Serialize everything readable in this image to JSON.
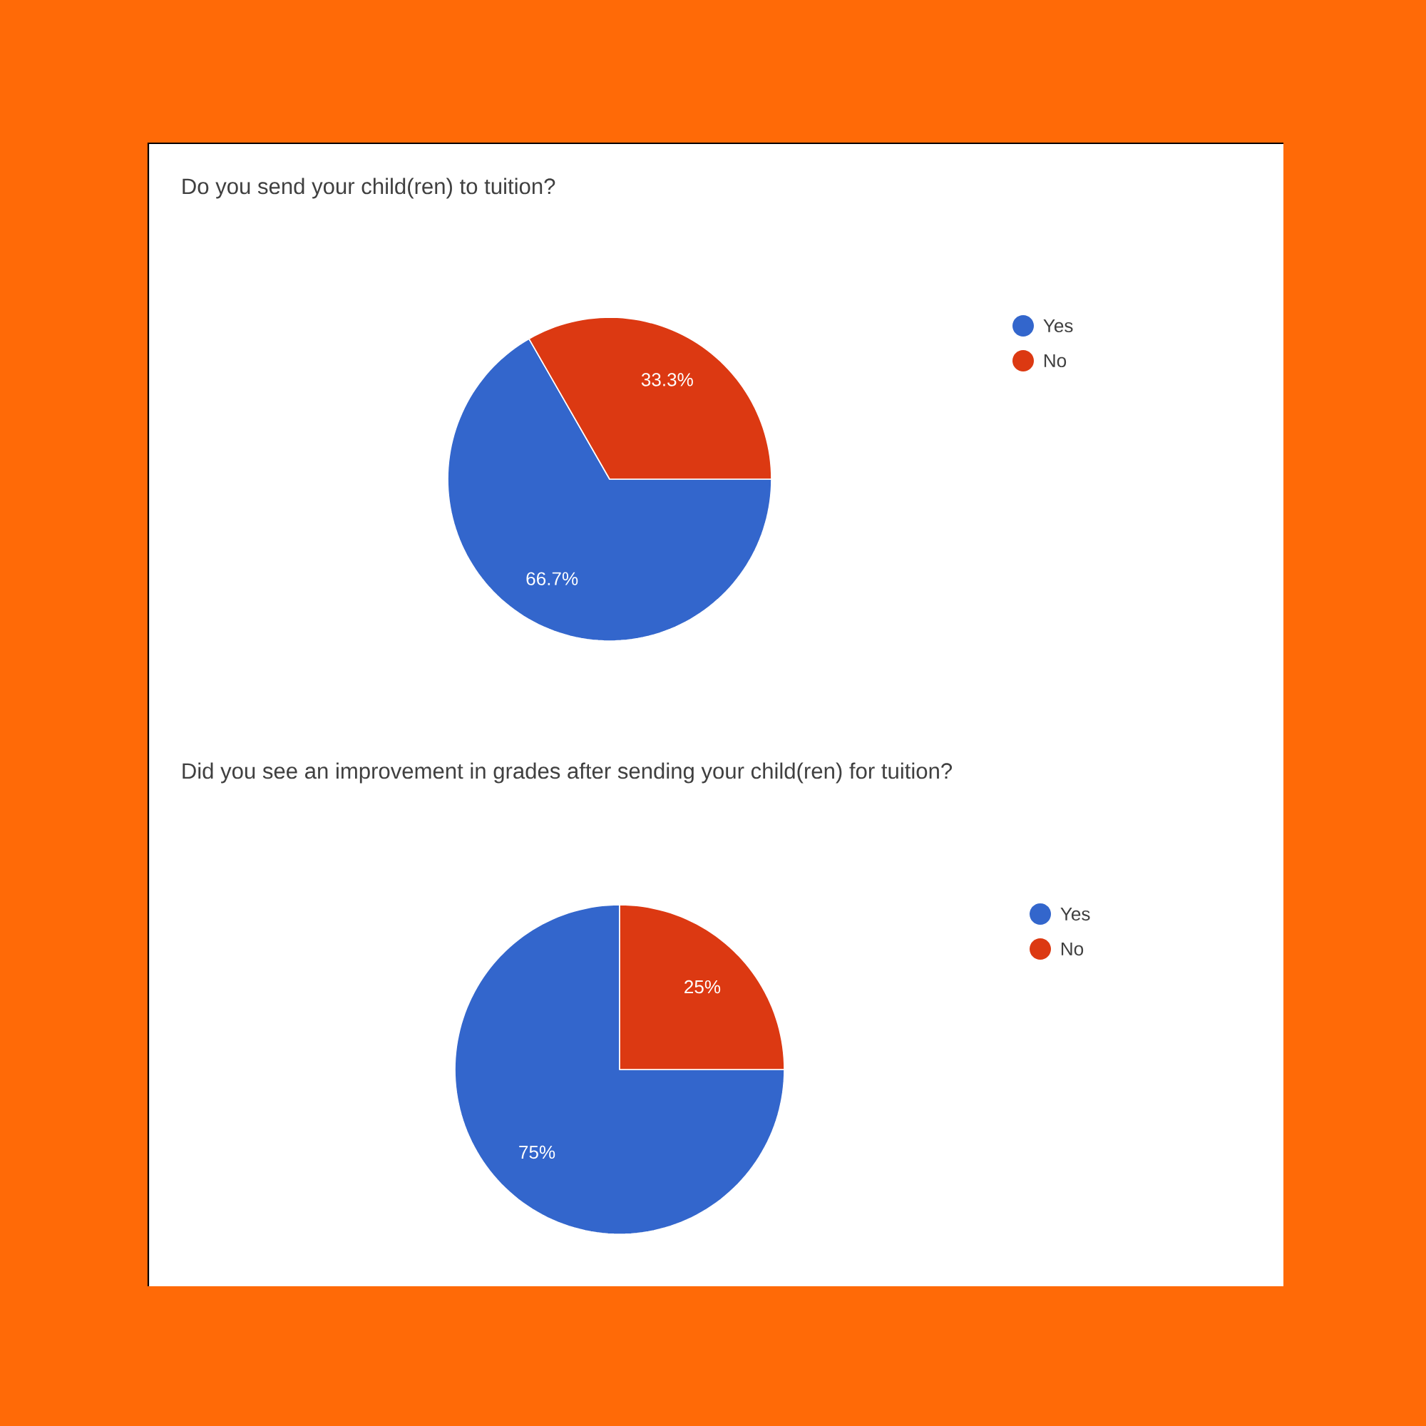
{
  "chart_data": [
    {
      "type": "pie",
      "title": "Do you send your child(ren) to tuition?",
      "categories": [
        "Yes",
        "No"
      ],
      "values": [
        66.7,
        33.3
      ],
      "colors": [
        "#3366cc",
        "#dc3912"
      ],
      "value_labels": [
        "66.7%",
        "33.3%"
      ],
      "legend": "top right"
    },
    {
      "type": "pie",
      "title": "Did you see an improvement in grades after sending your child(ren) for tuition?",
      "categories": [
        "Yes",
        "No"
      ],
      "values": [
        75,
        25
      ],
      "colors": [
        "#3366cc",
        "#dc3912"
      ],
      "value_labels": [
        "75%",
        "25%"
      ],
      "legend": "top right"
    }
  ]
}
